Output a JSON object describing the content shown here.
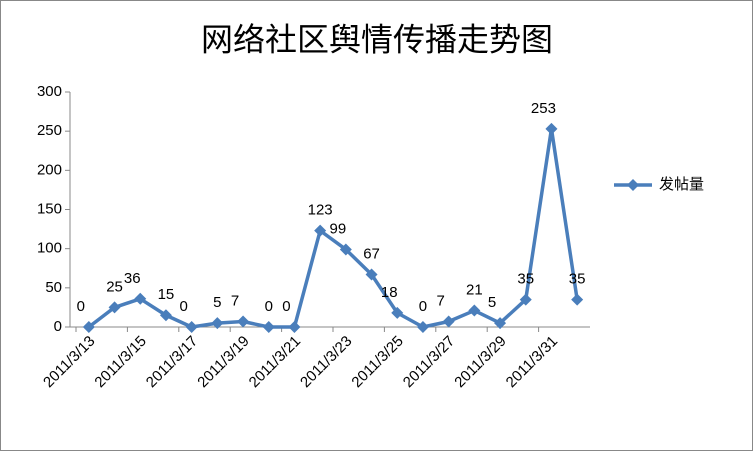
{
  "chart_data": {
    "type": "line",
    "title": "网络社区舆情传播走势图",
    "categories": [
      "2011/3/13",
      null,
      "2011/3/15",
      null,
      "2011/3/17",
      null,
      "2011/3/19",
      null,
      "2011/3/21",
      null,
      "2011/3/23",
      null,
      "2011/3/25",
      null,
      "2011/3/27",
      null,
      "2011/3/29",
      null,
      "2011/3/31",
      null
    ],
    "series": [
      {
        "name": "发帖量",
        "color": "#4a7ebb",
        "values": [
          0,
          25,
          36,
          15,
          0,
          5,
          7,
          0,
          0,
          123,
          99,
          67,
          18,
          0,
          7,
          21,
          5,
          35,
          253,
          35
        ]
      }
    ],
    "ylim": [
      0,
      300
    ],
    "yticks": [
      0,
      50,
      100,
      150,
      200,
      250,
      300
    ],
    "legend": "right"
  }
}
